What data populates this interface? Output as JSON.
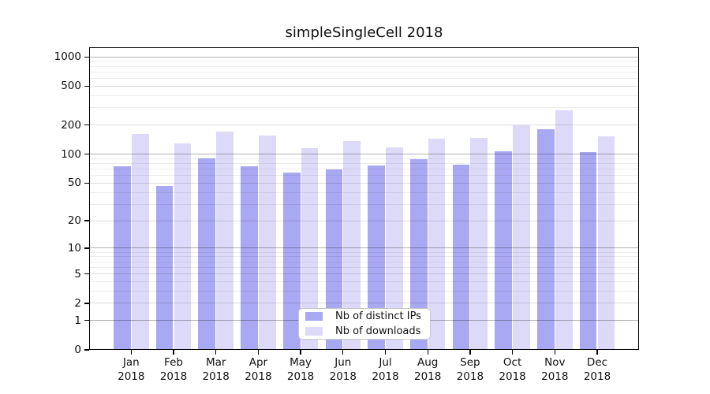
{
  "title": "simpleSingleCell 2018",
  "legend": {
    "items": [
      {
        "label": "Nb of distinct IPs",
        "color": "#a9a8f2"
      },
      {
        "label": "Nb of downloads",
        "color": "#dcdaf8"
      }
    ]
  },
  "y_axis": {
    "ticks": [
      0,
      1,
      2,
      5,
      10,
      20,
      50,
      100,
      200,
      500,
      1000
    ]
  },
  "x_axis": {
    "months": [
      "Jan",
      "Feb",
      "Mar",
      "Apr",
      "May",
      "Jun",
      "Jul",
      "Aug",
      "Sep",
      "Oct",
      "Nov",
      "Dec"
    ],
    "year": "2018"
  },
  "colors": {
    "bar_distinct_ips": "#a9a8f2",
    "bar_downloads": "#dcdaf8",
    "grid_major": "rgba(0,0,0,0.30)",
    "grid_medium": "rgba(0,0,0,0.13)",
    "grid_minor": "rgba(0,0,0,0.07)",
    "axis": "#000000"
  },
  "chart_data": {
    "type": "bar",
    "title": "simpleSingleCell 2018",
    "categories": [
      "Jan 2018",
      "Feb 2018",
      "Mar 2018",
      "Apr 2018",
      "May 2018",
      "Jun 2018",
      "Jul 2018",
      "Aug 2018",
      "Sep 2018",
      "Oct 2018",
      "Nov 2018",
      "Dec 2018"
    ],
    "series": [
      {
        "name": "Nb of distinct IPs",
        "color": "#a9a8f2",
        "values": [
          75,
          47,
          91,
          75,
          65,
          70,
          76,
          88,
          78,
          108,
          180,
          106
        ]
      },
      {
        "name": "Nb of downloads",
        "color": "#dcdaf8",
        "values": [
          162,
          128,
          172,
          157,
          116,
          137,
          118,
          144,
          146,
          199,
          283,
          152
        ]
      }
    ],
    "xlabel": "",
    "ylabel": "",
    "y_scale": "log10(1+value)",
    "y_ticks": [
      0,
      1,
      2,
      5,
      10,
      20,
      50,
      100,
      200,
      500,
      1000
    ],
    "ylim": [
      0,
      1000
    ],
    "grid": "horizontal",
    "legend_position": "inside-bottom-center"
  }
}
